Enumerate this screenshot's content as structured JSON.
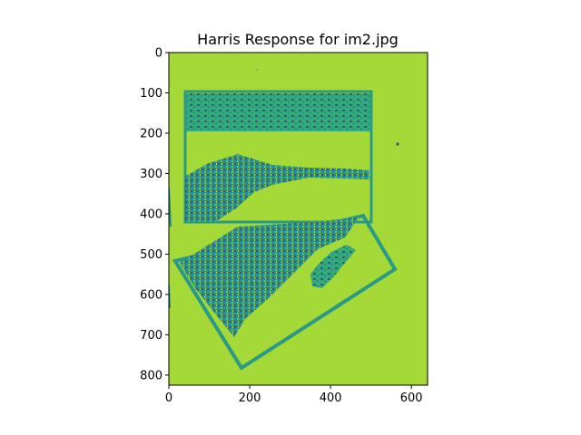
{
  "chart_data": {
    "type": "heatmap",
    "title": "Harris Response for im2.jpg",
    "xlabel": "",
    "ylabel": "",
    "xlim": [
      0,
      640
    ],
    "ylim": [
      0,
      825
    ],
    "y_inverted": true,
    "x_ticks": [
      0,
      200,
      400,
      600
    ],
    "y_ticks": [
      0,
      100,
      200,
      300,
      400,
      500,
      600,
      700,
      800
    ],
    "colormap": "viridis",
    "colors": {
      "background": "#a4d937",
      "high": "#54c567",
      "mid": "#21918c",
      "low": "#3b528b"
    },
    "grid": false,
    "legend": "none"
  }
}
